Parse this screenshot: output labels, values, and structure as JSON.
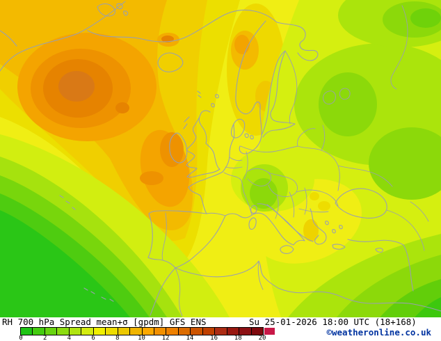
{
  "header": {
    "title": "RH 700 hPa Spread mean+σ [gpdm] GFS ENS",
    "valid_time": "Su 25-01-2026 18:00 UTC (18+168)"
  },
  "map": {
    "region": "Europe / North Atlantic",
    "description": "Filled contour field of relative humidity 700 hPa ensemble spread (mean+sigma), GFS ENS; orange maximum over the North Atlantic, green minima southwest and east",
    "coastline_color": "#9aa0ae"
  },
  "legend": {
    "unit_ticks": [
      "0",
      "2",
      "4",
      "6",
      "8",
      "10",
      "12",
      "14",
      "16",
      "18",
      "20"
    ],
    "segment_colors": [
      "#1ec414",
      "#44cc10",
      "#68d410",
      "#8cdc10",
      "#b0e410",
      "#d4ec10",
      "#f0f000",
      "#eedc00",
      "#ecc800",
      "#f0b400",
      "#fca800",
      "#f29000",
      "#ee8000",
      "#dc6c00",
      "#cc5400",
      "#c04000",
      "#ac2c14",
      "#981810",
      "#8c1014",
      "#7e0a0e"
    ],
    "overflow_color": "#c81848"
  },
  "credit": {
    "text": "©weatheronline.co.uk",
    "color": "#0033a0"
  }
}
